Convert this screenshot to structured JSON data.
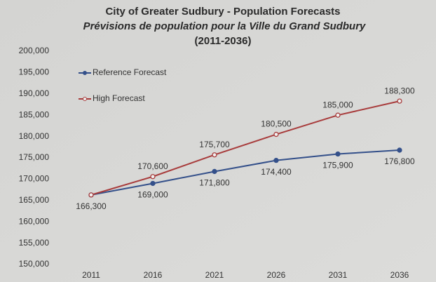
{
  "chart_data": {
    "type": "line",
    "title": "City of Greater Sudbury - Population Forecasts",
    "subtitle": "Prévisions de population pour la Ville du Grand Sudbury",
    "date_range": "(2011-2036)",
    "categories": [
      "2011",
      "2016",
      "2021",
      "2026",
      "2031",
      "2036"
    ],
    "series": [
      {
        "name": "Reference Forecast",
        "color": "#34508a",
        "marker": "filled",
        "values": [
          166300,
          169000,
          171800,
          174400,
          175900,
          176800
        ],
        "value_labels": [
          "166,300",
          "169,000",
          "171,800",
          "174,400",
          "175,900",
          "176,800"
        ]
      },
      {
        "name": "High Forecast",
        "color": "#a83c3c",
        "marker": "open",
        "values": [
          166300,
          170600,
          175700,
          180500,
          185000,
          188300
        ],
        "value_labels": [
          null,
          "170,600",
          "175,700",
          "180,500",
          "185,000",
          "188,300"
        ]
      }
    ],
    "ylim": [
      150000,
      200000
    ],
    "yticks": [
      {
        "value": 150000,
        "label": "150,000"
      },
      {
        "value": 155000,
        "label": "155,000"
      },
      {
        "value": 160000,
        "label": "160,000"
      },
      {
        "value": 165000,
        "label": "165,000"
      },
      {
        "value": 170000,
        "label": "170,000"
      },
      {
        "value": 175000,
        "label": "175,000"
      },
      {
        "value": 180000,
        "label": "180,000"
      },
      {
        "value": 185000,
        "label": "185,000"
      },
      {
        "value": 190000,
        "label": "190,000"
      },
      {
        "value": 195000,
        "label": "195,000"
      },
      {
        "value": 200000,
        "label": "200,000"
      }
    ],
    "legend": "upper left",
    "grid": false
  }
}
